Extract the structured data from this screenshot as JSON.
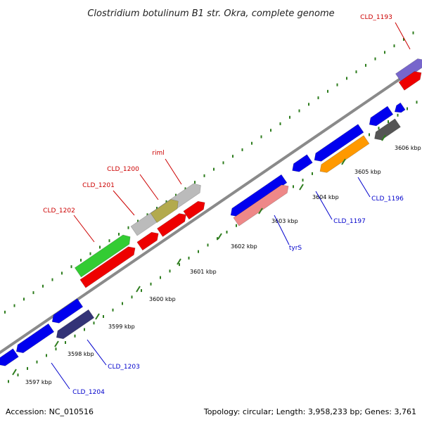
{
  "title": "Clostridium botulinum B1 str. Okra, complete genome",
  "footer": {
    "accession": "Accession: NC_010516",
    "topology": "Topology: circular; Length: 3,958,233 bp; Genes: 3,761"
  },
  "ticks": [
    {
      "label": "3597 kbp"
    },
    {
      "label": "3598 kbp"
    },
    {
      "label": "3599 kbp"
    },
    {
      "label": "3600 kbp"
    },
    {
      "label": "3601 kbp"
    },
    {
      "label": "3602 kbp"
    },
    {
      "label": "3603 kbp"
    },
    {
      "label": "3604 kbp"
    },
    {
      "label": "3605 kbp"
    },
    {
      "label": "3606 kbp"
    }
  ],
  "gene_labels": [
    {
      "text": "CLD_1193",
      "color": "#cc0000"
    },
    {
      "text": "riml",
      "color": "#cc0000"
    },
    {
      "text": "CLD_1200",
      "color": "#cc0000"
    },
    {
      "text": "CLD_1201",
      "color": "#cc0000"
    },
    {
      "text": "CLD_1202",
      "color": "#cc0000"
    },
    {
      "text": "CLD_1196",
      "color": "#0000cc"
    },
    {
      "text": "CLD_1197",
      "color": "#0000cc"
    },
    {
      "text": "tyrS",
      "color": "#0000cc"
    },
    {
      "text": "CLD_1203",
      "color": "#0000cc"
    },
    {
      "text": "CLD_1204",
      "color": "#0000cc"
    }
  ],
  "colors": {
    "backbone": "#8a8a8a",
    "tick": "#2e7d1e",
    "cds_blue": "#0000ee",
    "cds_red": "#ee0000",
    "gene_green": "#33cc33",
    "gene_gray": "#bbbbbb",
    "gene_olive": "#b3aa4d",
    "gene_pink": "#ee8888",
    "gene_orange": "#ff9900",
    "gene_darkgray": "#555555",
    "gene_slate": "#333377",
    "gene_purple": "#7766cc"
  }
}
